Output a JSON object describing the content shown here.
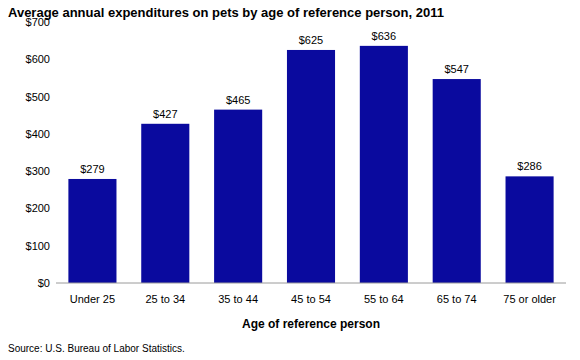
{
  "chart_data": {
    "type": "bar",
    "title": "Average annual expenditures on pets by age of reference person, 2011",
    "x_label": "Age of reference person",
    "source": "Source: U.S. Bureau of Labor Statistics.",
    "categories": [
      "Under 25",
      "25 to 34",
      "35 to 44",
      "45 to 54",
      "55 to 64",
      "65 to 74",
      "75 or older"
    ],
    "values": [
      279,
      427,
      465,
      625,
      636,
      547,
      286
    ],
    "value_labels": [
      "$279",
      "$427",
      "$465",
      "$625",
      "$636",
      "$547",
      "$286"
    ],
    "color": "#0a0a9e",
    "ylim": [
      0,
      700
    ],
    "yticks": [
      {
        "value": 0,
        "label": "$0"
      },
      {
        "value": 100,
        "label": "$100"
      },
      {
        "value": 200,
        "label": "$200"
      },
      {
        "value": 300,
        "label": "$300"
      },
      {
        "value": 400,
        "label": "$400"
      },
      {
        "value": 500,
        "label": "$500"
      },
      {
        "value": 600,
        "label": "$600"
      },
      {
        "value": 700,
        "label": "$700"
      }
    ],
    "grid": false,
    "data_labels": true
  }
}
